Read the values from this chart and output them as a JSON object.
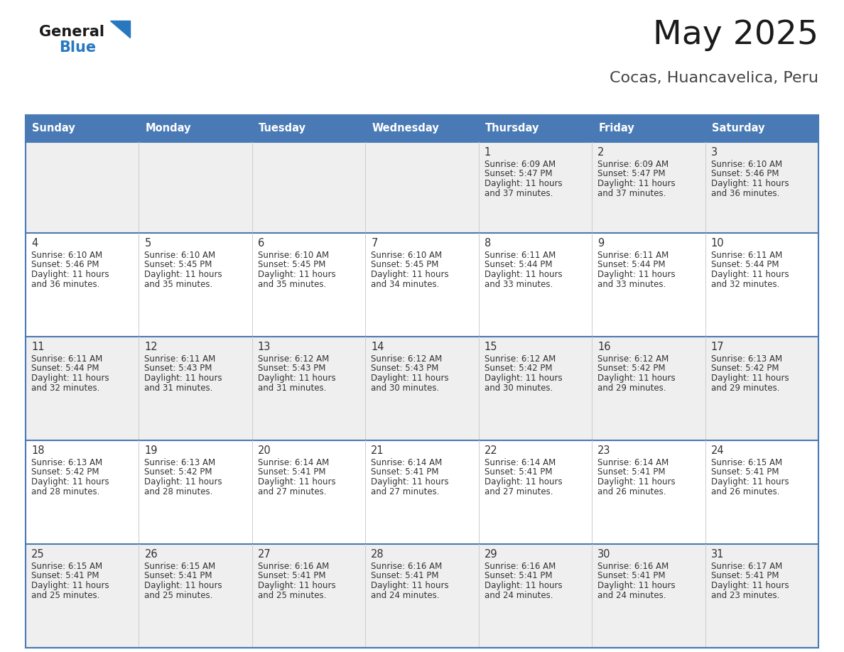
{
  "title": "May 2025",
  "subtitle": "Cocas, Huancavelica, Peru",
  "days_of_week": [
    "Sunday",
    "Monday",
    "Tuesday",
    "Wednesday",
    "Thursday",
    "Friday",
    "Saturday"
  ],
  "header_bg": "#4a7ab5",
  "header_text": "#ffffff",
  "cell_bg_odd": "#efefef",
  "cell_bg_even": "#ffffff",
  "cell_text": "#333333",
  "border_color": "#4a7ab5",
  "row_divider_color": "#4a7ab5",
  "title_color": "#1a1a1a",
  "subtitle_color": "#444444",
  "general_color": "#1a1a1a",
  "blue_color": "#2878c0",
  "calendar": [
    [
      null,
      null,
      null,
      null,
      {
        "day": 1,
        "sunrise": "6:09 AM",
        "sunset": "5:47 PM",
        "daylight_h": "11 hours",
        "daylight_m": "and 37 minutes."
      },
      {
        "day": 2,
        "sunrise": "6:09 AM",
        "sunset": "5:47 PM",
        "daylight_h": "11 hours",
        "daylight_m": "and 37 minutes."
      },
      {
        "day": 3,
        "sunrise": "6:10 AM",
        "sunset": "5:46 PM",
        "daylight_h": "11 hours",
        "daylight_m": "and 36 minutes."
      }
    ],
    [
      {
        "day": 4,
        "sunrise": "6:10 AM",
        "sunset": "5:46 PM",
        "daylight_h": "11 hours",
        "daylight_m": "and 36 minutes."
      },
      {
        "day": 5,
        "sunrise": "6:10 AM",
        "sunset": "5:45 PM",
        "daylight_h": "11 hours",
        "daylight_m": "and 35 minutes."
      },
      {
        "day": 6,
        "sunrise": "6:10 AM",
        "sunset": "5:45 PM",
        "daylight_h": "11 hours",
        "daylight_m": "and 35 minutes."
      },
      {
        "day": 7,
        "sunrise": "6:10 AM",
        "sunset": "5:45 PM",
        "daylight_h": "11 hours",
        "daylight_m": "and 34 minutes."
      },
      {
        "day": 8,
        "sunrise": "6:11 AM",
        "sunset": "5:44 PM",
        "daylight_h": "11 hours",
        "daylight_m": "and 33 minutes."
      },
      {
        "day": 9,
        "sunrise": "6:11 AM",
        "sunset": "5:44 PM",
        "daylight_h": "11 hours",
        "daylight_m": "and 33 minutes."
      },
      {
        "day": 10,
        "sunrise": "6:11 AM",
        "sunset": "5:44 PM",
        "daylight_h": "11 hours",
        "daylight_m": "and 32 minutes."
      }
    ],
    [
      {
        "day": 11,
        "sunrise": "6:11 AM",
        "sunset": "5:44 PM",
        "daylight_h": "11 hours",
        "daylight_m": "and 32 minutes."
      },
      {
        "day": 12,
        "sunrise": "6:11 AM",
        "sunset": "5:43 PM",
        "daylight_h": "11 hours",
        "daylight_m": "and 31 minutes."
      },
      {
        "day": 13,
        "sunrise": "6:12 AM",
        "sunset": "5:43 PM",
        "daylight_h": "11 hours",
        "daylight_m": "and 31 minutes."
      },
      {
        "day": 14,
        "sunrise": "6:12 AM",
        "sunset": "5:43 PM",
        "daylight_h": "11 hours",
        "daylight_m": "and 30 minutes."
      },
      {
        "day": 15,
        "sunrise": "6:12 AM",
        "sunset": "5:42 PM",
        "daylight_h": "11 hours",
        "daylight_m": "and 30 minutes."
      },
      {
        "day": 16,
        "sunrise": "6:12 AM",
        "sunset": "5:42 PM",
        "daylight_h": "11 hours",
        "daylight_m": "and 29 minutes."
      },
      {
        "day": 17,
        "sunrise": "6:13 AM",
        "sunset": "5:42 PM",
        "daylight_h": "11 hours",
        "daylight_m": "and 29 minutes."
      }
    ],
    [
      {
        "day": 18,
        "sunrise": "6:13 AM",
        "sunset": "5:42 PM",
        "daylight_h": "11 hours",
        "daylight_m": "and 28 minutes."
      },
      {
        "day": 19,
        "sunrise": "6:13 AM",
        "sunset": "5:42 PM",
        "daylight_h": "11 hours",
        "daylight_m": "and 28 minutes."
      },
      {
        "day": 20,
        "sunrise": "6:14 AM",
        "sunset": "5:41 PM",
        "daylight_h": "11 hours",
        "daylight_m": "and 27 minutes."
      },
      {
        "day": 21,
        "sunrise": "6:14 AM",
        "sunset": "5:41 PM",
        "daylight_h": "11 hours",
        "daylight_m": "and 27 minutes."
      },
      {
        "day": 22,
        "sunrise": "6:14 AM",
        "sunset": "5:41 PM",
        "daylight_h": "11 hours",
        "daylight_m": "and 27 minutes."
      },
      {
        "day": 23,
        "sunrise": "6:14 AM",
        "sunset": "5:41 PM",
        "daylight_h": "11 hours",
        "daylight_m": "and 26 minutes."
      },
      {
        "day": 24,
        "sunrise": "6:15 AM",
        "sunset": "5:41 PM",
        "daylight_h": "11 hours",
        "daylight_m": "and 26 minutes."
      }
    ],
    [
      {
        "day": 25,
        "sunrise": "6:15 AM",
        "sunset": "5:41 PM",
        "daylight_h": "11 hours",
        "daylight_m": "and 25 minutes."
      },
      {
        "day": 26,
        "sunrise": "6:15 AM",
        "sunset": "5:41 PM",
        "daylight_h": "11 hours",
        "daylight_m": "and 25 minutes."
      },
      {
        "day": 27,
        "sunrise": "6:16 AM",
        "sunset": "5:41 PM",
        "daylight_h": "11 hours",
        "daylight_m": "and 25 minutes."
      },
      {
        "day": 28,
        "sunrise": "6:16 AM",
        "sunset": "5:41 PM",
        "daylight_h": "11 hours",
        "daylight_m": "and 24 minutes."
      },
      {
        "day": 29,
        "sunrise": "6:16 AM",
        "sunset": "5:41 PM",
        "daylight_h": "11 hours",
        "daylight_m": "and 24 minutes."
      },
      {
        "day": 30,
        "sunrise": "6:16 AM",
        "sunset": "5:41 PM",
        "daylight_h": "11 hours",
        "daylight_m": "and 24 minutes."
      },
      {
        "day": 31,
        "sunrise": "6:17 AM",
        "sunset": "5:41 PM",
        "daylight_h": "11 hours",
        "daylight_m": "and 23 minutes."
      }
    ]
  ]
}
